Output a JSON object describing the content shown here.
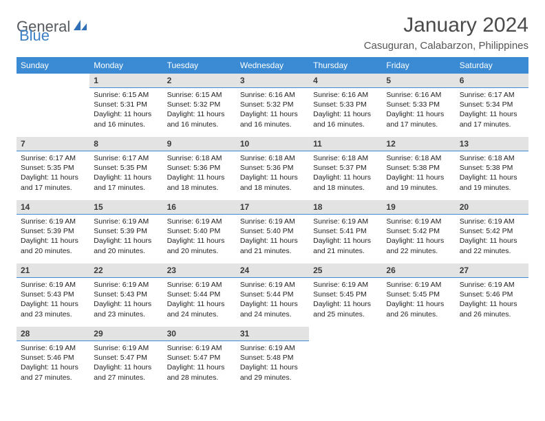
{
  "brand": {
    "part1": "General",
    "part2": "Blue"
  },
  "title": "January 2024",
  "location": "Casuguran, Calabarzon, Philippines",
  "colors": {
    "header_bg": "#3b8bd4",
    "header_text": "#ffffff",
    "daynum_bg": "#e3e3e3",
    "logo_gray": "#555a5f",
    "logo_blue": "#3b7fc4"
  },
  "weekdays": [
    "Sunday",
    "Monday",
    "Tuesday",
    "Wednesday",
    "Thursday",
    "Friday",
    "Saturday"
  ],
  "weeks": [
    {
      "nums": [
        "",
        "1",
        "2",
        "3",
        "4",
        "5",
        "6"
      ],
      "cells": [
        null,
        {
          "rise": "6:15 AM",
          "set": "5:31 PM",
          "day": "11 hours and 16 minutes."
        },
        {
          "rise": "6:15 AM",
          "set": "5:32 PM",
          "day": "11 hours and 16 minutes."
        },
        {
          "rise": "6:16 AM",
          "set": "5:32 PM",
          "day": "11 hours and 16 minutes."
        },
        {
          "rise": "6:16 AM",
          "set": "5:33 PM",
          "day": "11 hours and 16 minutes."
        },
        {
          "rise": "6:16 AM",
          "set": "5:33 PM",
          "day": "11 hours and 17 minutes."
        },
        {
          "rise": "6:17 AM",
          "set": "5:34 PM",
          "day": "11 hours and 17 minutes."
        }
      ]
    },
    {
      "nums": [
        "7",
        "8",
        "9",
        "10",
        "11",
        "12",
        "13"
      ],
      "cells": [
        {
          "rise": "6:17 AM",
          "set": "5:35 PM",
          "day": "11 hours and 17 minutes."
        },
        {
          "rise": "6:17 AM",
          "set": "5:35 PM",
          "day": "11 hours and 17 minutes."
        },
        {
          "rise": "6:18 AM",
          "set": "5:36 PM",
          "day": "11 hours and 18 minutes."
        },
        {
          "rise": "6:18 AM",
          "set": "5:36 PM",
          "day": "11 hours and 18 minutes."
        },
        {
          "rise": "6:18 AM",
          "set": "5:37 PM",
          "day": "11 hours and 18 minutes."
        },
        {
          "rise": "6:18 AM",
          "set": "5:38 PM",
          "day": "11 hours and 19 minutes."
        },
        {
          "rise": "6:18 AM",
          "set": "5:38 PM",
          "day": "11 hours and 19 minutes."
        }
      ]
    },
    {
      "nums": [
        "14",
        "15",
        "16",
        "17",
        "18",
        "19",
        "20"
      ],
      "cells": [
        {
          "rise": "6:19 AM",
          "set": "5:39 PM",
          "day": "11 hours and 20 minutes."
        },
        {
          "rise": "6:19 AM",
          "set": "5:39 PM",
          "day": "11 hours and 20 minutes."
        },
        {
          "rise": "6:19 AM",
          "set": "5:40 PM",
          "day": "11 hours and 20 minutes."
        },
        {
          "rise": "6:19 AM",
          "set": "5:40 PM",
          "day": "11 hours and 21 minutes."
        },
        {
          "rise": "6:19 AM",
          "set": "5:41 PM",
          "day": "11 hours and 21 minutes."
        },
        {
          "rise": "6:19 AM",
          "set": "5:42 PM",
          "day": "11 hours and 22 minutes."
        },
        {
          "rise": "6:19 AM",
          "set": "5:42 PM",
          "day": "11 hours and 22 minutes."
        }
      ]
    },
    {
      "nums": [
        "21",
        "22",
        "23",
        "24",
        "25",
        "26",
        "27"
      ],
      "cells": [
        {
          "rise": "6:19 AM",
          "set": "5:43 PM",
          "day": "11 hours and 23 minutes."
        },
        {
          "rise": "6:19 AM",
          "set": "5:43 PM",
          "day": "11 hours and 23 minutes."
        },
        {
          "rise": "6:19 AM",
          "set": "5:44 PM",
          "day": "11 hours and 24 minutes."
        },
        {
          "rise": "6:19 AM",
          "set": "5:44 PM",
          "day": "11 hours and 24 minutes."
        },
        {
          "rise": "6:19 AM",
          "set": "5:45 PM",
          "day": "11 hours and 25 minutes."
        },
        {
          "rise": "6:19 AM",
          "set": "5:45 PM",
          "day": "11 hours and 26 minutes."
        },
        {
          "rise": "6:19 AM",
          "set": "5:46 PM",
          "day": "11 hours and 26 minutes."
        }
      ]
    },
    {
      "nums": [
        "28",
        "29",
        "30",
        "31",
        "",
        "",
        ""
      ],
      "cells": [
        {
          "rise": "6:19 AM",
          "set": "5:46 PM",
          "day": "11 hours and 27 minutes."
        },
        {
          "rise": "6:19 AM",
          "set": "5:47 PM",
          "day": "11 hours and 27 minutes."
        },
        {
          "rise": "6:19 AM",
          "set": "5:47 PM",
          "day": "11 hours and 28 minutes."
        },
        {
          "rise": "6:19 AM",
          "set": "5:48 PM",
          "day": "11 hours and 29 minutes."
        },
        null,
        null,
        null
      ]
    }
  ],
  "labels": {
    "sunrise": "Sunrise:",
    "sunset": "Sunset:",
    "daylight": "Daylight:"
  }
}
